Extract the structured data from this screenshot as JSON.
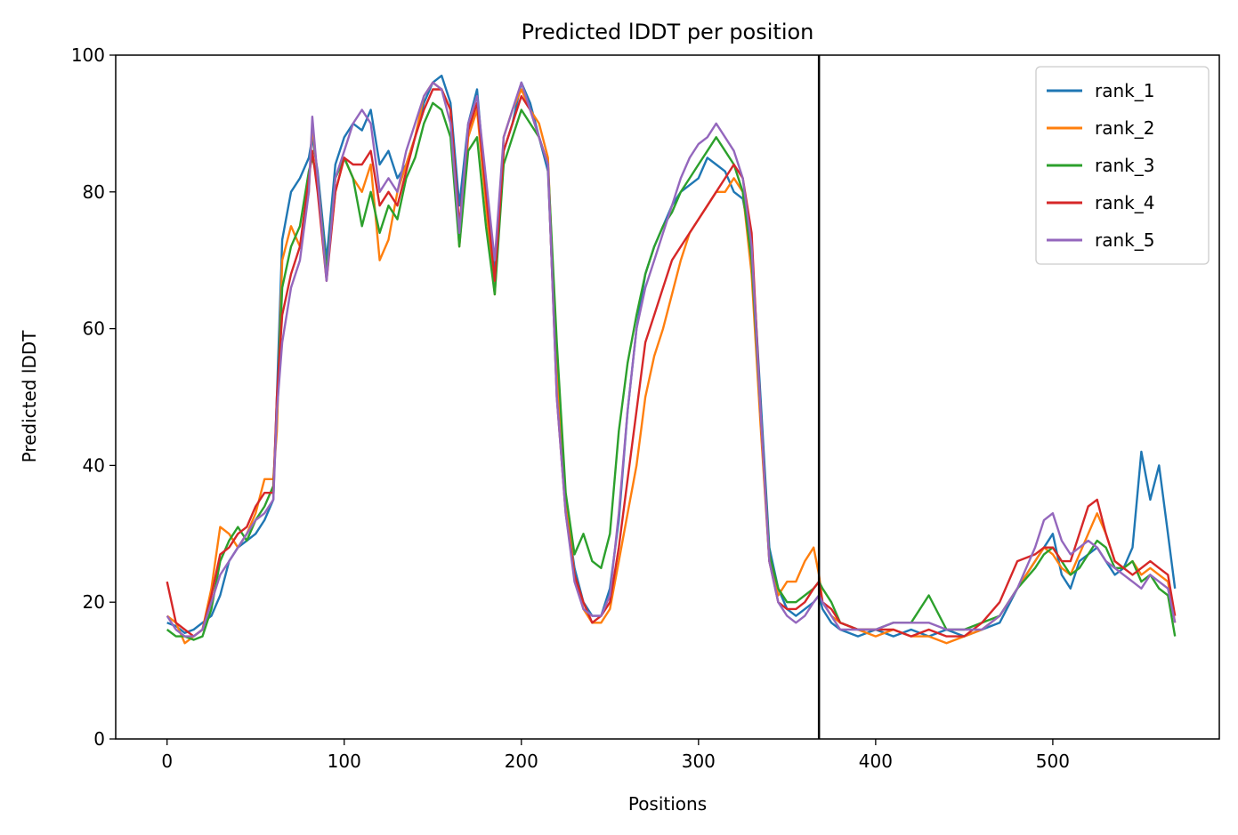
{
  "chart_data": {
    "type": "line",
    "title": "Predicted lDDT per position",
    "xlabel": "Positions",
    "ylabel": "Predicted lDDT",
    "xlim": [
      -29,
      594
    ],
    "ylim": [
      0,
      100
    ],
    "xticks": [
      0,
      100,
      200,
      300,
      400,
      500
    ],
    "yticks": [
      0,
      20,
      40,
      60,
      80,
      100
    ],
    "grid": false,
    "legend_position": "top-right",
    "vline": {
      "x": 368,
      "color": "#000000"
    },
    "x": [
      0,
      5,
      10,
      15,
      20,
      25,
      30,
      35,
      40,
      45,
      50,
      55,
      60,
      62,
      65,
      70,
      75,
      80,
      82,
      85,
      90,
      95,
      100,
      105,
      110,
      115,
      120,
      125,
      130,
      135,
      140,
      145,
      150,
      155,
      160,
      165,
      170,
      175,
      180,
      185,
      190,
      195,
      200,
      205,
      210,
      215,
      220,
      225,
      230,
      235,
      240,
      245,
      250,
      255,
      260,
      265,
      270,
      275,
      280,
      285,
      290,
      295,
      300,
      305,
      310,
      315,
      320,
      325,
      330,
      335,
      340,
      345,
      350,
      355,
      360,
      365,
      368,
      370,
      375,
      380,
      390,
      400,
      410,
      420,
      430,
      440,
      450,
      460,
      470,
      480,
      490,
      495,
      500,
      505,
      510,
      515,
      520,
      525,
      530,
      535,
      540,
      545,
      550,
      555,
      560,
      565,
      569
    ],
    "series": [
      {
        "name": "rank_1",
        "color": "#1f77b4",
        "values": [
          17,
          16.5,
          15.5,
          16,
          17,
          18,
          21,
          26,
          28,
          29,
          30,
          32,
          35,
          50,
          73,
          80,
          82,
          85,
          88,
          83,
          70,
          84,
          88,
          90,
          89,
          92,
          84,
          86,
          82,
          84,
          88,
          93,
          96,
          97,
          93,
          78,
          90,
          95,
          80,
          68,
          86,
          90,
          96,
          93,
          88,
          83,
          52,
          34,
          25,
          20,
          18,
          18,
          22,
          32,
          48,
          60,
          68,
          72,
          75,
          78,
          80,
          81,
          82,
          85,
          84,
          83,
          80,
          79,
          72,
          50,
          28,
          22,
          19,
          18,
          19,
          20,
          21,
          19,
          17,
          16,
          15,
          16,
          15,
          16,
          15,
          16,
          15,
          16,
          17,
          22,
          26,
          28,
          30,
          24,
          22,
          26,
          27,
          28,
          26,
          24,
          25,
          28,
          42,
          35,
          40,
          30,
          22
        ]
      },
      {
        "name": "rank_2",
        "color": "#ff7f0e",
        "values": [
          18,
          17,
          14,
          15,
          16,
          22,
          31,
          30,
          28,
          30,
          33,
          38,
          38,
          45,
          70,
          75,
          72,
          80,
          90,
          82,
          68,
          80,
          85,
          82,
          80,
          84,
          70,
          73,
          80,
          84,
          88,
          94,
          96,
          95,
          92,
          72,
          88,
          92,
          78,
          65,
          88,
          92,
          95,
          92,
          90,
          85,
          54,
          35,
          24,
          19,
          17,
          17,
          19,
          26,
          33,
          40,
          50,
          56,
          60,
          65,
          70,
          74,
          76,
          78,
          80,
          80,
          82,
          80,
          68,
          46,
          26,
          21,
          23,
          23,
          26,
          28,
          24,
          20,
          18,
          17,
          16,
          15,
          16,
          15,
          15,
          14,
          15,
          16,
          18,
          22,
          26,
          28,
          27,
          25,
          24,
          27,
          30,
          33,
          30,
          26,
          25,
          26,
          24,
          25,
          24,
          23,
          17
        ]
      },
      {
        "name": "rank_3",
        "color": "#2ca02c",
        "values": [
          16,
          15,
          15,
          14.5,
          15,
          19,
          26,
          29,
          31,
          29,
          32,
          34,
          37,
          48,
          66,
          72,
          75,
          83,
          85,
          82,
          68,
          82,
          85,
          82,
          75,
          80,
          74,
          78,
          76,
          82,
          85,
          90,
          93,
          92,
          88,
          72,
          86,
          88,
          75,
          65,
          84,
          88,
          92,
          90,
          88,
          84,
          58,
          36,
          27,
          30,
          26,
          25,
          30,
          45,
          55,
          62,
          68,
          72,
          75,
          77,
          80,
          82,
          84,
          86,
          88,
          86,
          84,
          80,
          70,
          48,
          27,
          22,
          20,
          20,
          21,
          22,
          23,
          22,
          20,
          17,
          16,
          16,
          17,
          17,
          21,
          16,
          16,
          17,
          18,
          22,
          25,
          27,
          28,
          26,
          24,
          25,
          27,
          29,
          28,
          25,
          25,
          26,
          23,
          24,
          22,
          21,
          15
        ]
      },
      {
        "name": "rank_4",
        "color": "#d62728",
        "values": [
          23,
          17,
          16,
          15,
          16,
          21,
          27,
          28,
          30,
          31,
          34,
          36,
          36,
          50,
          62,
          68,
          72,
          82,
          86,
          80,
          67,
          80,
          85,
          84,
          84,
          86,
          78,
          80,
          78,
          83,
          88,
          92,
          95,
          95,
          92,
          75,
          89,
          93,
          80,
          67,
          86,
          90,
          94,
          92,
          88,
          84,
          50,
          33,
          24,
          20,
          17,
          18,
          20,
          28,
          38,
          48,
          58,
          62,
          66,
          70,
          72,
          74,
          76,
          78,
          80,
          82,
          84,
          82,
          74,
          48,
          26,
          20,
          19,
          19,
          20,
          22,
          23,
          20,
          19,
          17,
          16,
          16,
          16,
          15,
          16,
          15,
          15,
          17,
          20,
          26,
          27,
          28,
          28,
          26,
          26,
          30,
          34,
          35,
          30,
          26,
          25,
          24,
          25,
          26,
          25,
          24,
          18
        ]
      },
      {
        "name": "rank_5",
        "color": "#9467bd",
        "values": [
          18,
          16,
          15,
          15,
          16,
          20,
          24,
          26,
          28,
          30,
          32,
          33,
          35,
          48,
          58,
          66,
          70,
          80,
          91,
          82,
          67,
          82,
          86,
          90,
          92,
          90,
          80,
          82,
          80,
          86,
          90,
          94,
          96,
          95,
          90,
          74,
          90,
          94,
          82,
          70,
          88,
          92,
          96,
          92,
          88,
          84,
          50,
          33,
          23,
          19,
          18,
          18,
          21,
          33,
          48,
          60,
          66,
          70,
          74,
          78,
          82,
          85,
          87,
          88,
          90,
          88,
          86,
          82,
          72,
          48,
          26,
          20,
          18,
          17,
          18,
          20,
          21,
          20,
          18,
          16,
          16,
          16,
          17,
          17,
          17,
          16,
          16,
          16,
          18,
          22,
          28,
          32,
          33,
          29,
          27,
          28,
          29,
          28,
          26,
          25,
          24,
          23,
          22,
          24,
          23,
          22,
          17
        ]
      }
    ],
    "legend": [
      "rank_1",
      "rank_2",
      "rank_3",
      "rank_4",
      "rank_5"
    ]
  }
}
